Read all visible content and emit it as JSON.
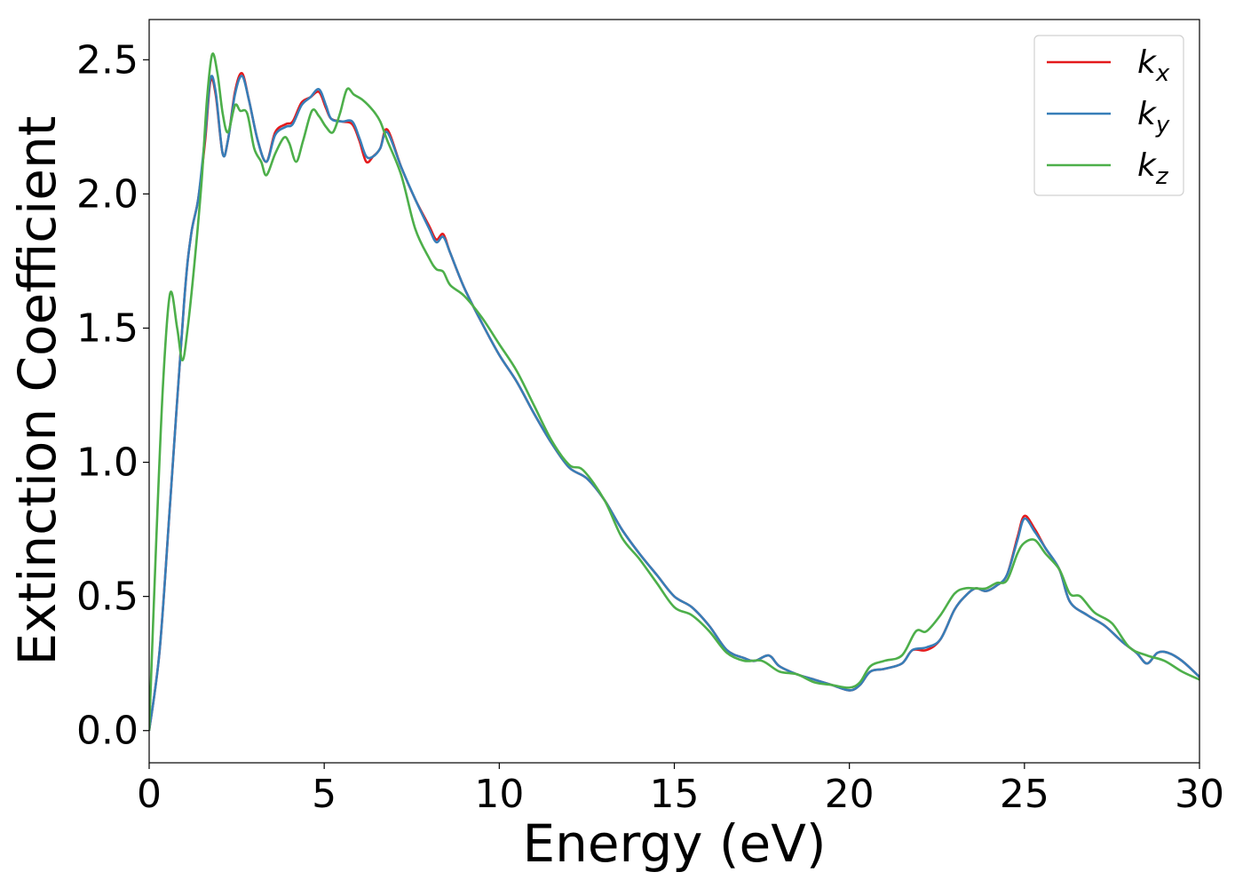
{
  "chart_data": {
    "type": "line",
    "title": "",
    "xlabel": "Energy (eV)",
    "ylabel": "Extinction Coefficient",
    "xlim": [
      0,
      30
    ],
    "ylim": [
      -0.12,
      2.65
    ],
    "xticks": [
      0,
      5,
      10,
      15,
      20,
      25,
      30
    ],
    "xtick_labels": [
      "0",
      "5",
      "10",
      "15",
      "20",
      "25",
      "30"
    ],
    "yticks": [
      0.0,
      0.5,
      1.0,
      1.5,
      2.0,
      2.5
    ],
    "ytick_labels": [
      "0.0",
      "0.5",
      "1.0",
      "1.5",
      "2.0",
      "2.5"
    ],
    "grid": false,
    "legend": "top-right",
    "series": [
      {
        "name": "k_x",
        "legend_main": "k",
        "legend_sub": "x",
        "color": "#e41a1c",
        "points": [
          [
            0,
            0
          ],
          [
            0.3,
            0.3
          ],
          [
            0.6,
            0.85
          ],
          [
            1.0,
            1.6
          ],
          [
            1.2,
            1.85
          ],
          [
            1.4,
            1.98
          ],
          [
            1.6,
            2.2
          ],
          [
            1.75,
            2.42
          ],
          [
            1.9,
            2.37
          ],
          [
            2.1,
            2.15
          ],
          [
            2.25,
            2.2
          ],
          [
            2.45,
            2.38
          ],
          [
            2.65,
            2.45
          ],
          [
            2.85,
            2.35
          ],
          [
            3.1,
            2.2
          ],
          [
            3.35,
            2.12
          ],
          [
            3.6,
            2.23
          ],
          [
            3.9,
            2.26
          ],
          [
            4.1,
            2.27
          ],
          [
            4.35,
            2.34
          ],
          [
            4.6,
            2.36
          ],
          [
            4.85,
            2.38
          ],
          [
            5.05,
            2.32
          ],
          [
            5.2,
            2.28
          ],
          [
            5.5,
            2.27
          ],
          [
            5.8,
            2.26
          ],
          [
            6.0,
            2.2
          ],
          [
            6.2,
            2.12
          ],
          [
            6.4,
            2.14
          ],
          [
            6.6,
            2.17
          ],
          [
            6.8,
            2.24
          ],
          [
            7.2,
            2.1
          ],
          [
            7.6,
            1.98
          ],
          [
            8.0,
            1.88
          ],
          [
            8.2,
            1.83
          ],
          [
            8.4,
            1.85
          ],
          [
            8.6,
            1.78
          ],
          [
            9.0,
            1.65
          ],
          [
            9.5,
            1.52
          ],
          [
            10.0,
            1.4
          ],
          [
            10.5,
            1.3
          ],
          [
            11.0,
            1.18
          ],
          [
            11.5,
            1.07
          ],
          [
            12.0,
            0.98
          ],
          [
            12.5,
            0.94
          ],
          [
            13.0,
            0.86
          ],
          [
            13.5,
            0.75
          ],
          [
            14.0,
            0.66
          ],
          [
            14.5,
            0.58
          ],
          [
            15.0,
            0.5
          ],
          [
            15.5,
            0.46
          ],
          [
            16.0,
            0.39
          ],
          [
            16.5,
            0.3
          ],
          [
            17.0,
            0.27
          ],
          [
            17.3,
            0.26
          ],
          [
            17.7,
            0.28
          ],
          [
            18.0,
            0.24
          ],
          [
            18.5,
            0.21
          ],
          [
            19.0,
            0.19
          ],
          [
            19.5,
            0.17
          ],
          [
            20.0,
            0.15
          ],
          [
            20.3,
            0.17
          ],
          [
            20.6,
            0.22
          ],
          [
            21.0,
            0.23
          ],
          [
            21.5,
            0.25
          ],
          [
            21.8,
            0.3
          ],
          [
            22.2,
            0.3
          ],
          [
            22.6,
            0.34
          ],
          [
            23.0,
            0.45
          ],
          [
            23.3,
            0.5
          ],
          [
            23.6,
            0.53
          ],
          [
            23.9,
            0.52
          ],
          [
            24.2,
            0.54
          ],
          [
            24.5,
            0.58
          ],
          [
            24.8,
            0.72
          ],
          [
            25.0,
            0.8
          ],
          [
            25.3,
            0.75
          ],
          [
            25.6,
            0.68
          ],
          [
            26.0,
            0.6
          ],
          [
            26.3,
            0.48
          ],
          [
            26.8,
            0.43
          ],
          [
            27.3,
            0.39
          ],
          [
            27.8,
            0.33
          ],
          [
            28.2,
            0.29
          ],
          [
            28.5,
            0.25
          ],
          [
            28.8,
            0.29
          ],
          [
            29.1,
            0.29
          ],
          [
            29.5,
            0.26
          ],
          [
            30.0,
            0.2
          ]
        ]
      },
      {
        "name": "k_y",
        "legend_main": "k",
        "legend_sub": "y",
        "color": "#377eb8",
        "points": [
          [
            0,
            0
          ],
          [
            0.3,
            0.3
          ],
          [
            0.6,
            0.85
          ],
          [
            1.0,
            1.6
          ],
          [
            1.2,
            1.85
          ],
          [
            1.4,
            1.98
          ],
          [
            1.6,
            2.22
          ],
          [
            1.75,
            2.43
          ],
          [
            1.9,
            2.38
          ],
          [
            2.1,
            2.15
          ],
          [
            2.25,
            2.2
          ],
          [
            2.45,
            2.37
          ],
          [
            2.65,
            2.44
          ],
          [
            2.85,
            2.35
          ],
          [
            3.1,
            2.2
          ],
          [
            3.35,
            2.12
          ],
          [
            3.6,
            2.22
          ],
          [
            3.9,
            2.25
          ],
          [
            4.1,
            2.26
          ],
          [
            4.35,
            2.33
          ],
          [
            4.6,
            2.36
          ],
          [
            4.85,
            2.39
          ],
          [
            5.05,
            2.33
          ],
          [
            5.2,
            2.28
          ],
          [
            5.5,
            2.27
          ],
          [
            5.8,
            2.27
          ],
          [
            6.0,
            2.21
          ],
          [
            6.2,
            2.14
          ],
          [
            6.4,
            2.14
          ],
          [
            6.6,
            2.17
          ],
          [
            6.8,
            2.23
          ],
          [
            7.2,
            2.1
          ],
          [
            7.6,
            1.98
          ],
          [
            8.0,
            1.87
          ],
          [
            8.2,
            1.82
          ],
          [
            8.4,
            1.84
          ],
          [
            8.6,
            1.78
          ],
          [
            9.0,
            1.65
          ],
          [
            9.5,
            1.52
          ],
          [
            10.0,
            1.4
          ],
          [
            10.5,
            1.3
          ],
          [
            11.0,
            1.18
          ],
          [
            11.5,
            1.07
          ],
          [
            12.0,
            0.98
          ],
          [
            12.5,
            0.94
          ],
          [
            13.0,
            0.86
          ],
          [
            13.5,
            0.75
          ],
          [
            14.0,
            0.66
          ],
          [
            14.5,
            0.58
          ],
          [
            15.0,
            0.5
          ],
          [
            15.5,
            0.46
          ],
          [
            16.0,
            0.39
          ],
          [
            16.5,
            0.3
          ],
          [
            17.0,
            0.27
          ],
          [
            17.3,
            0.26
          ],
          [
            17.7,
            0.28
          ],
          [
            18.0,
            0.24
          ],
          [
            18.5,
            0.21
          ],
          [
            19.0,
            0.19
          ],
          [
            19.5,
            0.17
          ],
          [
            20.0,
            0.15
          ],
          [
            20.3,
            0.17
          ],
          [
            20.6,
            0.22
          ],
          [
            21.0,
            0.23
          ],
          [
            21.5,
            0.25
          ],
          [
            21.8,
            0.3
          ],
          [
            22.2,
            0.31
          ],
          [
            22.6,
            0.34
          ],
          [
            23.0,
            0.45
          ],
          [
            23.3,
            0.5
          ],
          [
            23.6,
            0.53
          ],
          [
            23.9,
            0.52
          ],
          [
            24.2,
            0.54
          ],
          [
            24.5,
            0.58
          ],
          [
            24.8,
            0.71
          ],
          [
            25.0,
            0.79
          ],
          [
            25.3,
            0.74
          ],
          [
            25.6,
            0.68
          ],
          [
            26.0,
            0.6
          ],
          [
            26.3,
            0.48
          ],
          [
            26.8,
            0.43
          ],
          [
            27.3,
            0.39
          ],
          [
            27.8,
            0.33
          ],
          [
            28.2,
            0.29
          ],
          [
            28.5,
            0.25
          ],
          [
            28.8,
            0.29
          ],
          [
            29.1,
            0.29
          ],
          [
            29.5,
            0.26
          ],
          [
            30.0,
            0.2
          ]
        ]
      },
      {
        "name": "k_z",
        "legend_main": "k",
        "legend_sub": "z",
        "color": "#4daf4a",
        "points": [
          [
            0,
            0
          ],
          [
            0.2,
            0.7
          ],
          [
            0.4,
            1.3
          ],
          [
            0.6,
            1.63
          ],
          [
            0.8,
            1.5
          ],
          [
            0.95,
            1.38
          ],
          [
            1.1,
            1.5
          ],
          [
            1.3,
            1.75
          ],
          [
            1.5,
            2.05
          ],
          [
            1.65,
            2.35
          ],
          [
            1.8,
            2.52
          ],
          [
            1.95,
            2.45
          ],
          [
            2.1,
            2.3
          ],
          [
            2.25,
            2.23
          ],
          [
            2.45,
            2.33
          ],
          [
            2.6,
            2.31
          ],
          [
            2.8,
            2.3
          ],
          [
            3.0,
            2.17
          ],
          [
            3.2,
            2.12
          ],
          [
            3.35,
            2.07
          ],
          [
            3.6,
            2.15
          ],
          [
            3.85,
            2.21
          ],
          [
            4.0,
            2.19
          ],
          [
            4.2,
            2.12
          ],
          [
            4.4,
            2.2
          ],
          [
            4.65,
            2.31
          ],
          [
            4.85,
            2.29
          ],
          [
            5.05,
            2.25
          ],
          [
            5.25,
            2.23
          ],
          [
            5.45,
            2.3
          ],
          [
            5.65,
            2.39
          ],
          [
            5.85,
            2.37
          ],
          [
            6.1,
            2.35
          ],
          [
            6.4,
            2.31
          ],
          [
            6.6,
            2.27
          ],
          [
            6.8,
            2.2
          ],
          [
            7.2,
            2.07
          ],
          [
            7.6,
            1.87
          ],
          [
            8.0,
            1.76
          ],
          [
            8.2,
            1.72
          ],
          [
            8.4,
            1.71
          ],
          [
            8.6,
            1.66
          ],
          [
            9.0,
            1.62
          ],
          [
            9.5,
            1.54
          ],
          [
            10.0,
            1.44
          ],
          [
            10.5,
            1.34
          ],
          [
            11.0,
            1.21
          ],
          [
            11.5,
            1.08
          ],
          [
            12.0,
            0.99
          ],
          [
            12.4,
            0.97
          ],
          [
            13.0,
            0.86
          ],
          [
            13.5,
            0.72
          ],
          [
            14.0,
            0.64
          ],
          [
            14.5,
            0.55
          ],
          [
            15.0,
            0.46
          ],
          [
            15.5,
            0.43
          ],
          [
            16.0,
            0.37
          ],
          [
            16.5,
            0.29
          ],
          [
            17.0,
            0.26
          ],
          [
            17.5,
            0.26
          ],
          [
            18.0,
            0.22
          ],
          [
            18.5,
            0.21
          ],
          [
            19.0,
            0.18
          ],
          [
            19.5,
            0.17
          ],
          [
            20.0,
            0.16
          ],
          [
            20.3,
            0.18
          ],
          [
            20.6,
            0.24
          ],
          [
            21.0,
            0.26
          ],
          [
            21.5,
            0.28
          ],
          [
            21.9,
            0.37
          ],
          [
            22.2,
            0.37
          ],
          [
            22.6,
            0.43
          ],
          [
            23.0,
            0.51
          ],
          [
            23.3,
            0.53
          ],
          [
            23.6,
            0.53
          ],
          [
            23.9,
            0.53
          ],
          [
            24.2,
            0.55
          ],
          [
            24.5,
            0.56
          ],
          [
            24.8,
            0.66
          ],
          [
            25.0,
            0.7
          ],
          [
            25.3,
            0.71
          ],
          [
            25.6,
            0.66
          ],
          [
            26.0,
            0.6
          ],
          [
            26.3,
            0.51
          ],
          [
            26.6,
            0.5
          ],
          [
            27.0,
            0.44
          ],
          [
            27.5,
            0.4
          ],
          [
            28.0,
            0.31
          ],
          [
            28.5,
            0.28
          ],
          [
            29.0,
            0.26
          ],
          [
            29.5,
            0.22
          ],
          [
            30.0,
            0.19
          ]
        ]
      }
    ]
  }
}
